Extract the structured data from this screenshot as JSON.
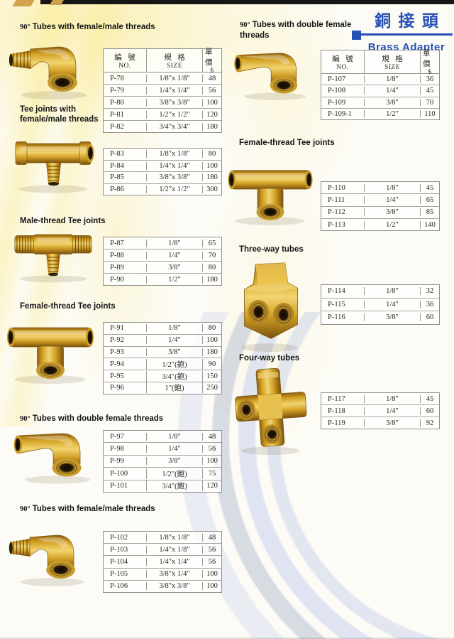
{
  "brand": {
    "title_zh": "銅 接 頭",
    "title_en": "Brass Adapter"
  },
  "colors": {
    "accent_blue": "#2750b4",
    "brass": "#d8a425"
  },
  "table_header": {
    "no_zh": "編 號",
    "no_en": "NO.",
    "size_zh": "規  格",
    "size_en": "SIZE",
    "price_zh": "單 價",
    "price_en": "$"
  },
  "sections": [
    {
      "degree": "90°",
      "title": "Tubes with female/male threads",
      "product": "elbow-female-male",
      "rows": [
        [
          "P-78",
          "1/8\"x 1/8\"",
          "48"
        ],
        [
          "P-79",
          "1/4\"x 1/4\"",
          "56"
        ],
        [
          "P-80",
          "3/8\"x 3/8\"",
          "100"
        ],
        [
          "P-81",
          "1/2\"x 1/2\"",
          "120"
        ],
        [
          "P-82",
          "3/4\"x 3/4\"",
          "180"
        ]
      ]
    },
    {
      "title": "Tee joints with female/male threads",
      "product": "tee-female-male",
      "rows": [
        [
          "P-83",
          "1/8\"x 1/8\"",
          "80"
        ],
        [
          "P-84",
          "1/4\"x 1/4\"",
          "100"
        ],
        [
          "P-85",
          "3/8\"x 3/8\"",
          "180"
        ],
        [
          "P-86",
          "1/2\"x 1/2\"",
          "300"
        ]
      ]
    },
    {
      "title": "Male-thread Tee joints",
      "product": "tee-male-thread",
      "rows": [
        [
          "P-87",
          "1/8\"",
          "65"
        ],
        [
          "P-88",
          "1/4\"",
          "70"
        ],
        [
          "P-89",
          "3/8\"",
          "80"
        ],
        [
          "P-90",
          "1/2\"",
          "180"
        ]
      ]
    },
    {
      "title": "Female-thread Tee joints",
      "product": "tee-female-thread",
      "rows": [
        [
          "P-91",
          "1/8\"",
          "80"
        ],
        [
          "P-92",
          "1/4\"",
          "100"
        ],
        [
          "P-93",
          "3/8\"",
          "180"
        ],
        [
          "P-94",
          "1/2\"(鉋)",
          "90"
        ],
        [
          "P-95",
          "3/4\"(鉋)",
          "150"
        ],
        [
          "P-96",
          "1\"(鉋)",
          "250"
        ]
      ]
    },
    {
      "degree": "90°",
      "title": "Tubes with double female threads",
      "product": "elbow-double-female",
      "rows": [
        [
          "P-97",
          "1/8\"",
          "48"
        ],
        [
          "P-98",
          "1/4\"",
          "56"
        ],
        [
          "P-99",
          "3/8\"",
          "100"
        ],
        [
          "P-100",
          "1/2\"(鉋)",
          "75"
        ],
        [
          "P-101",
          "3/4\"(鉋)",
          "120"
        ]
      ]
    },
    {
      "degree": "90°",
      "title": "Tubes with female/male threads",
      "product": "elbow-female-male",
      "rows": [
        [
          "P-102",
          "1/8\"x 1/8\"",
          "48"
        ],
        [
          "P-103",
          "1/4\"x 1/8\"",
          "56"
        ],
        [
          "P-104",
          "1/4\"x 1/4\"",
          "56"
        ],
        [
          "P-105",
          "3/8\"x 1/4\"",
          "100"
        ],
        [
          "P-106",
          "3/8\"x 3/8\"",
          "100"
        ]
      ]
    },
    {
      "degree": "90°",
      "title": "Tubes with double female threads",
      "product": "elbow-double-female",
      "rows": [
        [
          "P-107",
          "1/8\"",
          "36"
        ],
        [
          "P-108",
          "1/4\"",
          "45"
        ],
        [
          "P-109",
          "3/8\"",
          "70"
        ],
        [
          "P-109-1",
          "1/2\"",
          "110"
        ]
      ]
    },
    {
      "title": "Female-thread Tee joints",
      "product": "tee-female-thread",
      "rows": [
        [
          "P-110",
          "1/8\"",
          "45"
        ],
        [
          "P-111",
          "1/4\"",
          "65"
        ],
        [
          "P-112",
          "3/8\"",
          "85"
        ],
        [
          "P-113",
          "1/2\"",
          "140"
        ]
      ]
    },
    {
      "title": "Three-way tubes",
      "product": "three-way-tube",
      "rows": [
        [
          "P-114",
          "1/8\"",
          "32"
        ],
        [
          "P-115",
          "1/4\"",
          "36"
        ],
        [
          "P-116",
          "3/8\"",
          "60"
        ]
      ]
    },
    {
      "title": "Four-way tubes",
      "product": "four-way-tube",
      "rows": [
        [
          "P-117",
          "1/8\"",
          "45"
        ],
        [
          "P-118",
          "1/4\"",
          "60"
        ],
        [
          "P-119",
          "3/8\"",
          "92"
        ]
      ]
    }
  ]
}
